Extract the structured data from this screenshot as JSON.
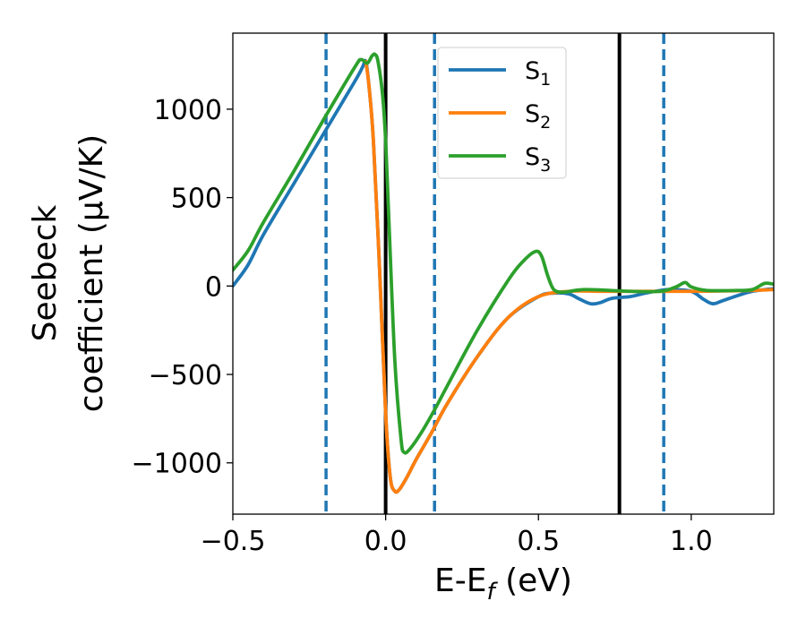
{
  "chart_data": {
    "type": "line",
    "xlabel": {
      "main": "E-E",
      "sub": "f",
      "unit": " (eV)"
    },
    "ylabel": {
      "line1": "Seebeck",
      "line2": "coefficient  (μV/K)"
    },
    "xlim": [
      -0.5,
      1.27
    ],
    "ylim": [
      -1290,
      1430
    ],
    "xticks": [
      {
        "value": -0.5,
        "label": "−0.5"
      },
      {
        "value": 0.0,
        "label": "0.0"
      },
      {
        "value": 0.5,
        "label": "0.5"
      },
      {
        "value": 1.0,
        "label": "1.0"
      }
    ],
    "yticks": [
      {
        "value": -1000,
        "label": "−1000"
      },
      {
        "value": -500,
        "label": "−500"
      },
      {
        "value": 0,
        "label": "0"
      },
      {
        "value": 500,
        "label": "500"
      },
      {
        "value": 1000,
        "label": "1000"
      }
    ],
    "vlines": [
      {
        "x": 0.0,
        "style": "solid",
        "color": "#000000"
      },
      {
        "x": 0.765,
        "style": "solid",
        "color": "#000000"
      },
      {
        "x": -0.195,
        "style": "dashed",
        "color": "#1f77b4"
      },
      {
        "x": 0.16,
        "style": "dashed",
        "color": "#1f77b4"
      },
      {
        "x": 0.91,
        "style": "dashed",
        "color": "#1f77b4"
      }
    ],
    "legend_position": "top-center",
    "series": [
      {
        "name": "S",
        "sub": "1",
        "color": "#1f77b4",
        "points": [
          [
            -0.5,
            0
          ],
          [
            -0.45,
            120
          ],
          [
            -0.4,
            290
          ],
          [
            -0.3,
            580
          ],
          [
            -0.2,
            870
          ],
          [
            -0.1,
            1160
          ],
          [
            -0.075,
            1240
          ],
          [
            -0.065,
            1270
          ],
          [
            -0.055,
            1140
          ],
          [
            -0.04,
            820
          ],
          [
            -0.02,
            100
          ],
          [
            0.0,
            -720
          ],
          [
            0.015,
            -1080
          ],
          [
            0.03,
            -1160
          ],
          [
            0.045,
            -1150
          ],
          [
            0.07,
            -1080
          ],
          [
            0.1,
            -980
          ],
          [
            0.15,
            -830
          ],
          [
            0.2,
            -670
          ],
          [
            0.3,
            -400
          ],
          [
            0.4,
            -180
          ],
          [
            0.5,
            -60
          ],
          [
            0.55,
            -40
          ],
          [
            0.6,
            -45
          ],
          [
            0.63,
            -70
          ],
          [
            0.67,
            -100
          ],
          [
            0.7,
            -95
          ],
          [
            0.74,
            -70
          ],
          [
            0.8,
            -60
          ],
          [
            0.85,
            -40
          ],
          [
            0.9,
            -25
          ],
          [
            0.93,
            -20
          ],
          [
            1.0,
            -30
          ],
          [
            1.04,
            -75
          ],
          [
            1.07,
            -100
          ],
          [
            1.1,
            -85
          ],
          [
            1.15,
            -55
          ],
          [
            1.2,
            -30
          ],
          [
            1.27,
            -15
          ]
        ]
      },
      {
        "name": "S",
        "sub": "2",
        "color": "#ff7f0e",
        "points": [
          [
            -0.065,
            1270
          ],
          [
            -0.055,
            1140
          ],
          [
            -0.04,
            820
          ],
          [
            -0.02,
            100
          ],
          [
            0.0,
            -720
          ],
          [
            0.015,
            -1080
          ],
          [
            0.03,
            -1160
          ],
          [
            0.045,
            -1150
          ],
          [
            0.07,
            -1080
          ],
          [
            0.1,
            -980
          ],
          [
            0.15,
            -830
          ],
          [
            0.2,
            -670
          ],
          [
            0.3,
            -400
          ],
          [
            0.4,
            -180
          ],
          [
            0.5,
            -60
          ],
          [
            0.6,
            -30
          ],
          [
            0.7,
            -30
          ],
          [
            0.8,
            -30
          ],
          [
            0.9,
            -30
          ],
          [
            1.0,
            -30
          ],
          [
            1.1,
            -28
          ],
          [
            1.2,
            -25
          ],
          [
            1.27,
            -20
          ]
        ]
      },
      {
        "name": "S",
        "sub": "3",
        "color": "#2ca02c",
        "points": [
          [
            -0.5,
            90
          ],
          [
            -0.45,
            200
          ],
          [
            -0.4,
            360
          ],
          [
            -0.3,
            650
          ],
          [
            -0.2,
            950
          ],
          [
            -0.1,
            1240
          ],
          [
            -0.08,
            1280
          ],
          [
            -0.06,
            1260
          ],
          [
            -0.045,
            1300
          ],
          [
            -0.035,
            1310
          ],
          [
            -0.025,
            1270
          ],
          [
            -0.01,
            1080
          ],
          [
            0.0,
            820
          ],
          [
            0.01,
            400
          ],
          [
            0.03,
            -420
          ],
          [
            0.05,
            -860
          ],
          [
            0.06,
            -940
          ],
          [
            0.08,
            -920
          ],
          [
            0.12,
            -820
          ],
          [
            0.16,
            -700
          ],
          [
            0.2,
            -570
          ],
          [
            0.3,
            -250
          ],
          [
            0.4,
            30
          ],
          [
            0.45,
            140
          ],
          [
            0.49,
            195
          ],
          [
            0.51,
            170
          ],
          [
            0.53,
            60
          ],
          [
            0.55,
            -20
          ],
          [
            0.58,
            -35
          ],
          [
            0.62,
            -25
          ],
          [
            0.65,
            -20
          ],
          [
            0.7,
            -22
          ],
          [
            0.8,
            -30
          ],
          [
            0.9,
            -30
          ],
          [
            0.95,
            -5
          ],
          [
            0.98,
            20
          ],
          [
            1.0,
            -5
          ],
          [
            1.05,
            -25
          ],
          [
            1.15,
            -25
          ],
          [
            1.2,
            -20
          ],
          [
            1.24,
            15
          ],
          [
            1.27,
            10
          ]
        ]
      }
    ]
  }
}
